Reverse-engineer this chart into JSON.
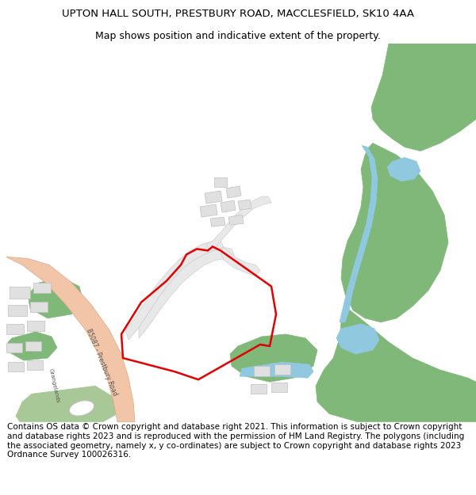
{
  "title": "UPTON HALL SOUTH, PRESTBURY ROAD, MACCLESFIELD, SK10 4AA",
  "subtitle": "Map shows position and indicative extent of the property.",
  "footer": "Contains OS data © Crown copyright and database right 2021. This information is subject to Crown copyright and database rights 2023 and is reproduced with the permission of HM Land Registry. The polygons (including the associated geometry, namely x, y co-ordinates) are subject to Crown copyright and database rights 2023 Ordnance Survey 100026316.",
  "bg_color": "#ffffff",
  "title_fontsize": 9.5,
  "subtitle_fontsize": 9.0,
  "footer_fontsize": 7.5,
  "road_color": "#f2c4a8",
  "green_color": "#80b87a",
  "water_color": "#90c8e0",
  "building_color": "#e0e0e0",
  "building_outline": "#c0c0c0",
  "path_color": "#e8e8e8",
  "path_outline": "#d0d0d0",
  "red_color": "#e00000",
  "text_color": "#555555",
  "light_green_color": "#a8c898"
}
